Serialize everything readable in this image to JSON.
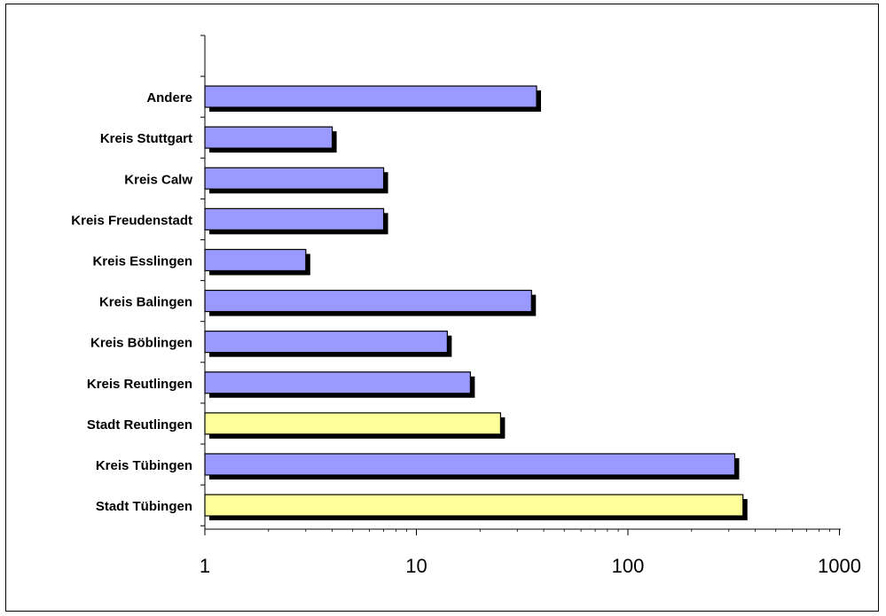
{
  "chart_data": {
    "type": "bar",
    "orientation": "horizontal",
    "x_scale": "log",
    "xlim": [
      1,
      1000
    ],
    "x_ticks": [
      "1",
      "10",
      "100",
      "1000"
    ],
    "categories": [
      "Andere",
      "Kreis Stuttgart",
      "Kreis Calw",
      "Kreis Freudenstadt",
      "Kreis Esslingen",
      "Kreis Balingen",
      "Kreis Böblingen",
      "Kreis Reutlingen",
      "Stadt Reutlingen",
      "Kreis Tübingen",
      "Stadt Tübingen"
    ],
    "values": [
      37,
      4,
      7,
      7,
      3,
      35,
      14,
      18,
      25,
      320,
      350
    ],
    "bar_colors": [
      "#9999ff",
      "#9999ff",
      "#9999ff",
      "#9999ff",
      "#9999ff",
      "#9999ff",
      "#9999ff",
      "#9999ff",
      "#ffff99",
      "#9999ff",
      "#ffff99"
    ],
    "shadow_color": "#000000",
    "title": "",
    "xlabel": "",
    "ylabel": "",
    "grid": false,
    "legend": "none"
  }
}
